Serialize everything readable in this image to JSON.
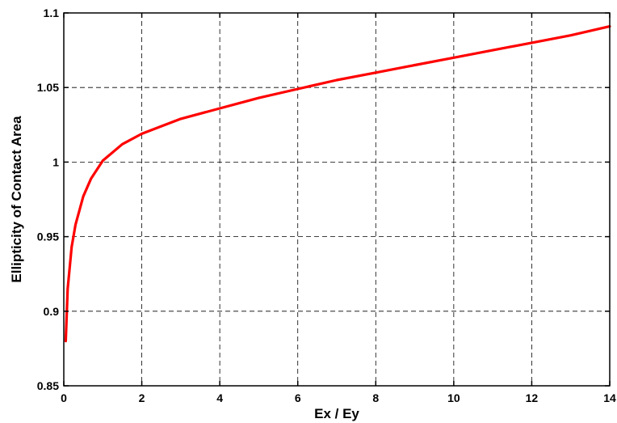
{
  "chart_data": {
    "type": "line",
    "title": "",
    "xlabel": "Ex / Ey",
    "ylabel": "Ellipticity of Contact Area",
    "xlim": [
      0,
      14
    ],
    "ylim": [
      0.85,
      1.1
    ],
    "xticks": [
      0,
      2,
      4,
      6,
      8,
      10,
      12,
      14
    ],
    "xtick_labels": [
      "0",
      "2",
      "4",
      "6",
      "8",
      "10",
      "12",
      "14"
    ],
    "yticks": [
      0.85,
      0.9,
      0.95,
      1.0,
      1.05,
      1.1
    ],
    "ytick_labels": [
      "0.85",
      "0.9",
      "0.95",
      "1",
      "1.05",
      "1.1"
    ],
    "grid": true,
    "series": [
      {
        "color": "#ff0000",
        "x": [
          0.05,
          0.1,
          0.2,
          0.3,
          0.5,
          0.7,
          1.0,
          1.5,
          2.0,
          2.5,
          3.0,
          4.0,
          5.0,
          6.0,
          7.0,
          8.0,
          9.0,
          10.0,
          11.0,
          12.0,
          13.0,
          14.0
        ],
        "y": [
          0.88,
          0.915,
          0.943,
          0.958,
          0.977,
          0.989,
          1.001,
          1.012,
          1.019,
          1.024,
          1.029,
          1.036,
          1.043,
          1.049,
          1.055,
          1.06,
          1.065,
          1.07,
          1.075,
          1.08,
          1.085,
          1.091
        ]
      }
    ]
  }
}
